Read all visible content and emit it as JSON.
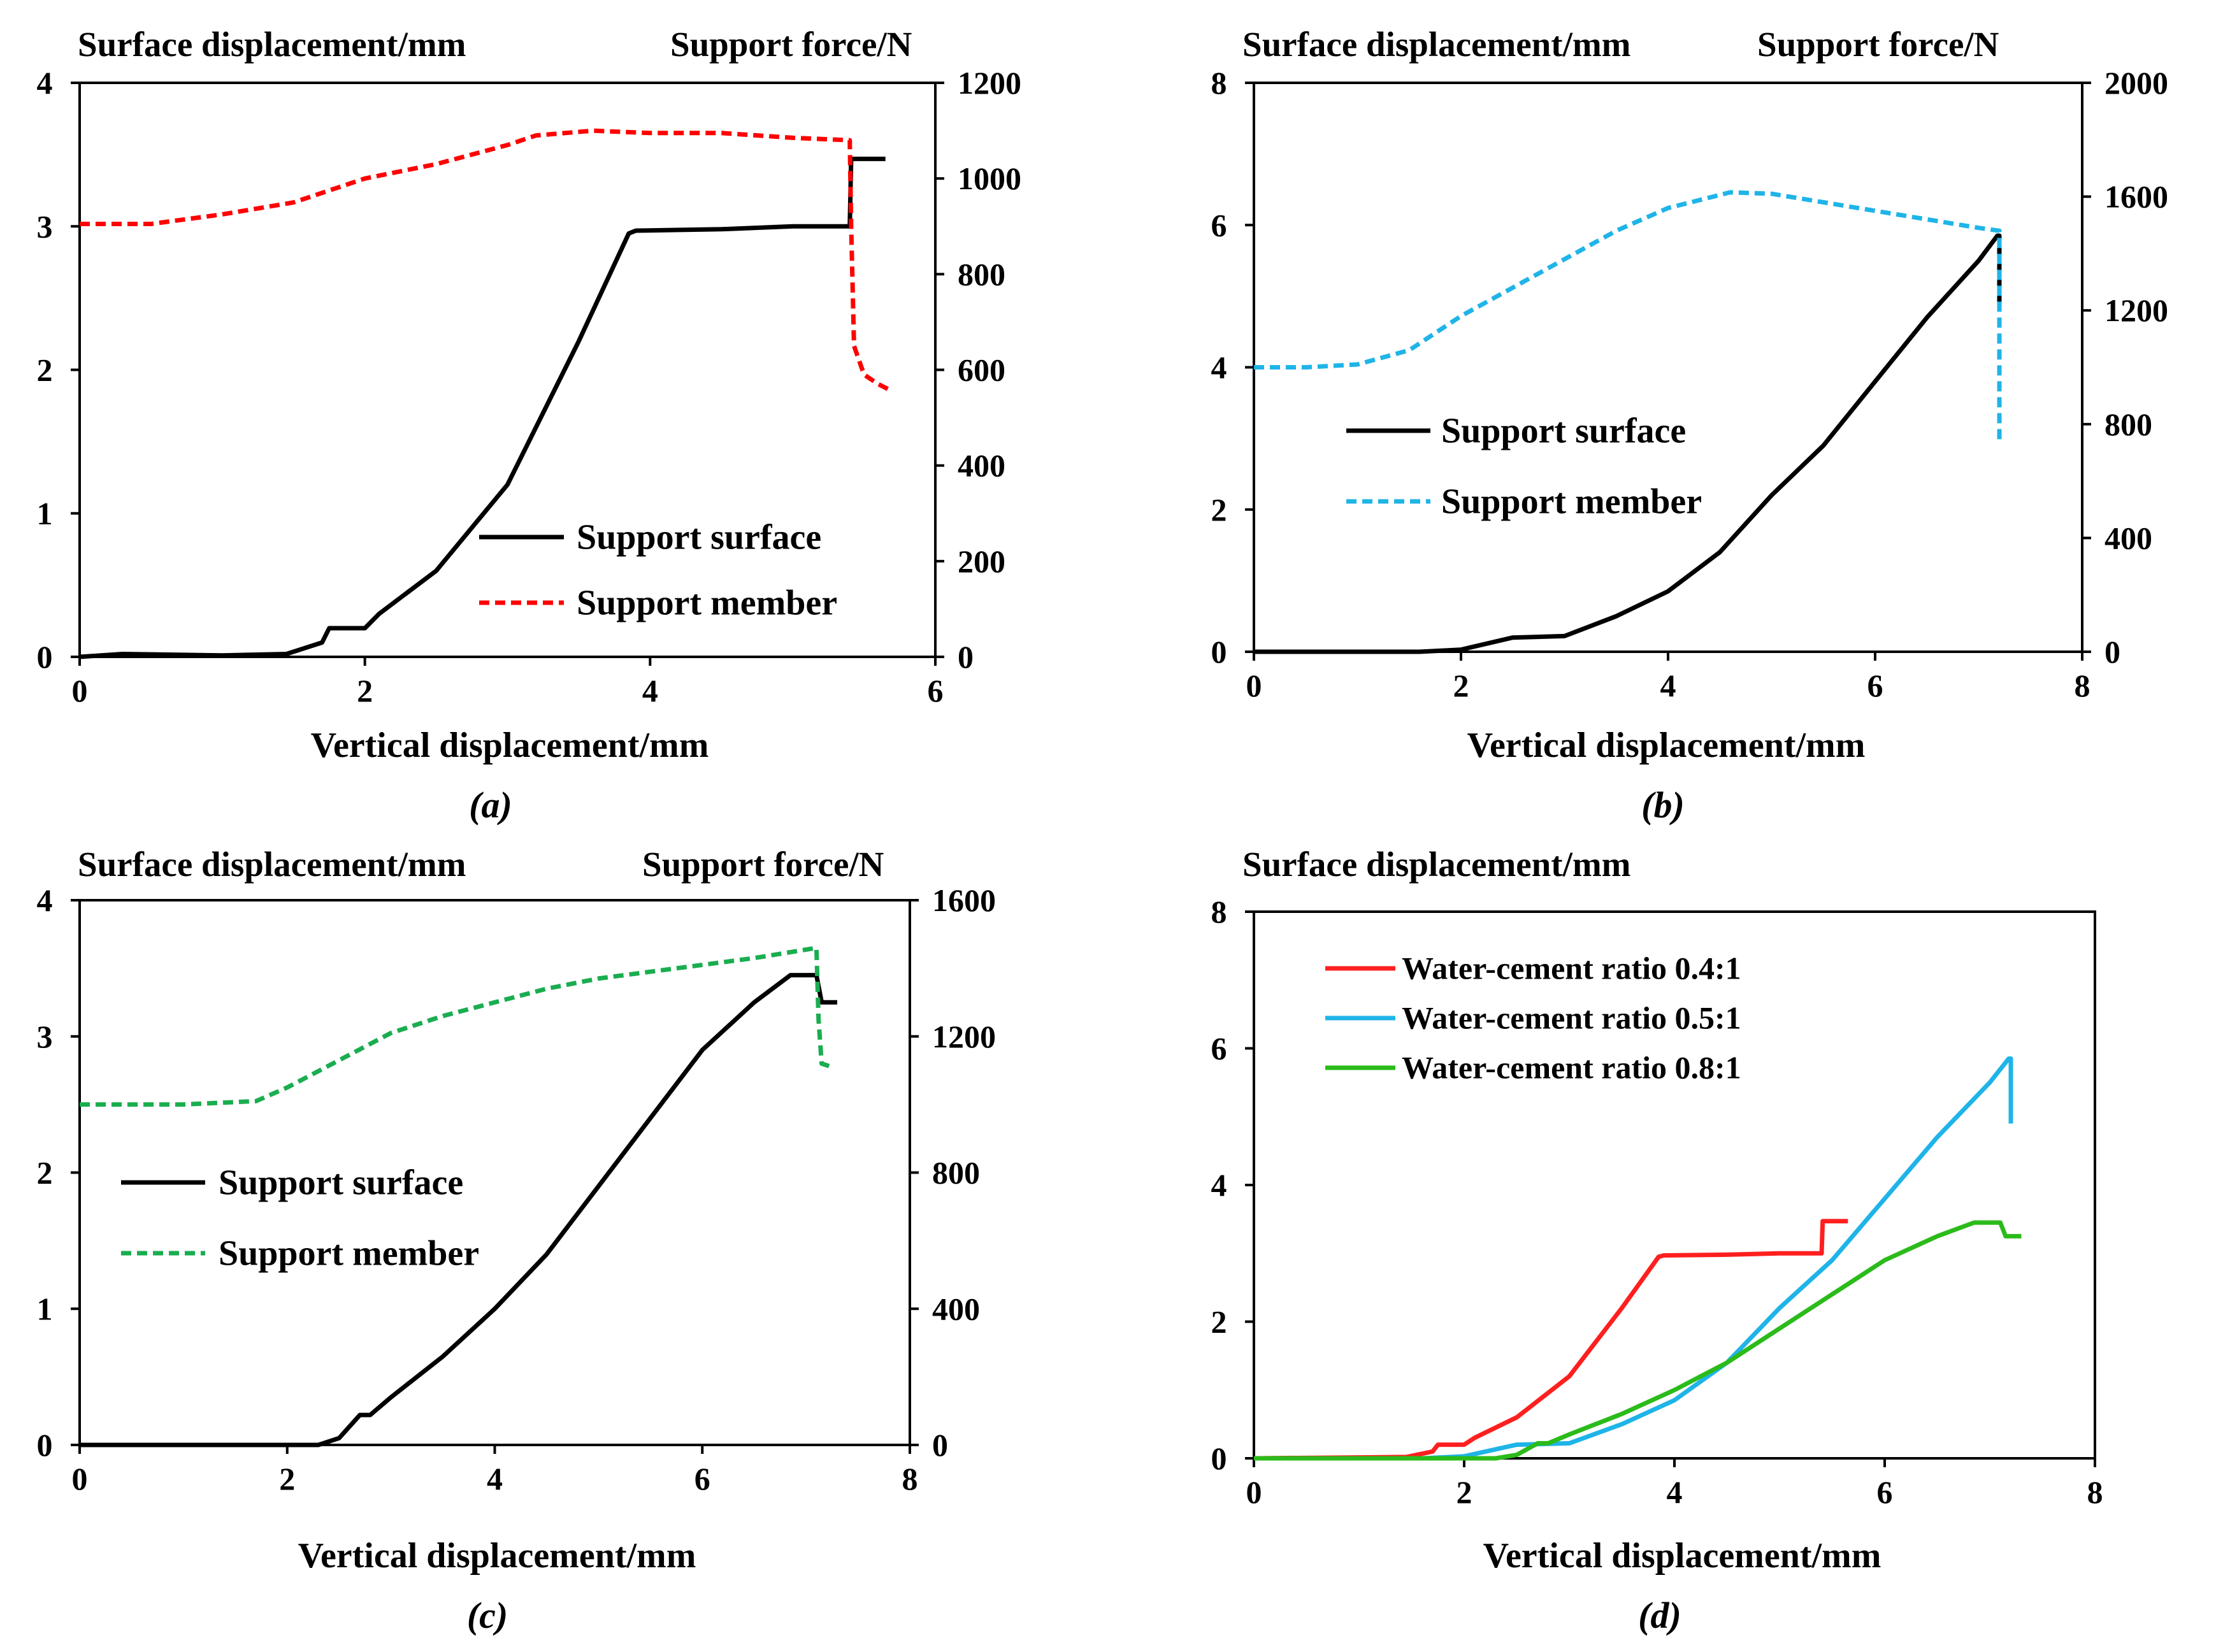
{
  "chart_data": [
    {
      "id": "a",
      "type": "line",
      "caption": "(a)",
      "xlabel": "Vertical displacement/mm",
      "ylabel_left": "Surface displacement/mm",
      "ylabel_right": "Support force/N",
      "xlim": [
        0,
        6
      ],
      "xticks": [
        0,
        2,
        4,
        6
      ],
      "ylim_left": [
        0,
        4
      ],
      "yticks_left": [
        0,
        1,
        2,
        3,
        4
      ],
      "ylim_right": [
        0,
        1200
      ],
      "yticks_right": [
        0,
        200,
        400,
        600,
        800,
        1000,
        1200
      ],
      "legend": {
        "position": "lower-right"
      },
      "series": [
        {
          "name": "Support surface",
          "axis": "left",
          "color": "#000000",
          "dash": "solid",
          "x": [
            0,
            0.3,
            1.0,
            1.45,
            1.7,
            1.75,
            2.0,
            2.1,
            2.5,
            3.0,
            3.5,
            3.85,
            3.9,
            4.5,
            5.0,
            5.4,
            5.41,
            5.65
          ],
          "y": [
            0,
            0.02,
            0.01,
            0.02,
            0.1,
            0.2,
            0.2,
            0.3,
            0.6,
            1.2,
            2.2,
            2.95,
            2.97,
            2.98,
            3.0,
            3.0,
            3.47,
            3.47
          ]
        },
        {
          "name": "Support member",
          "axis": "right",
          "color": "#ff0000",
          "dash": "dash",
          "x": [
            0,
            0.5,
            1.0,
            1.5,
            2.0,
            2.5,
            3.0,
            3.2,
            3.6,
            4.0,
            4.5,
            5.0,
            5.4,
            5.41,
            5.43,
            5.5,
            5.6,
            5.7
          ],
          "y": [
            905,
            905,
            925,
            950,
            1000,
            1030,
            1070,
            1090,
            1100,
            1095,
            1095,
            1085,
            1080,
            900,
            650,
            590,
            570,
            555
          ]
        }
      ]
    },
    {
      "id": "b",
      "type": "line",
      "caption": "(b)",
      "xlabel": "Vertical displacement/mm",
      "ylabel_left": "Surface displacement/mm",
      "ylabel_right": "Support force/N",
      "xlim": [
        0,
        8
      ],
      "xticks": [
        0,
        2,
        4,
        6,
        8
      ],
      "ylim_left": [
        0,
        8
      ],
      "yticks_left": [
        0,
        2,
        4,
        6,
        8
      ],
      "ylim_right": [
        0,
        2000
      ],
      "yticks_right": [
        0,
        400,
        800,
        1200,
        1600,
        2000
      ],
      "legend": {
        "position": "center-left"
      },
      "series": [
        {
          "name": "Support surface",
          "axis": "left",
          "color": "#000000",
          "dash": "solid",
          "x": [
            0,
            1.6,
            2.0,
            2.5,
            3.0,
            3.5,
            4.0,
            4.5,
            5.0,
            5.5,
            6.0,
            6.5,
            7.0,
            7.18,
            7.2,
            7.2
          ],
          "y": [
            0,
            0,
            0.03,
            0.2,
            0.22,
            0.5,
            0.85,
            1.4,
            2.2,
            2.9,
            3.8,
            4.7,
            5.5,
            5.85,
            5.85,
            4.9
          ]
        },
        {
          "name": "Support member",
          "axis": "right",
          "color": "#1fb4e8",
          "dash": "dash",
          "x": [
            0,
            0.5,
            1.0,
            1.5,
            2.0,
            2.5,
            3.0,
            3.5,
            4.0,
            4.6,
            5.0,
            5.5,
            6.0,
            6.5,
            7.0,
            7.2,
            7.2,
            7.2
          ],
          "y": [
            1000,
            1000,
            1010,
            1060,
            1180,
            1280,
            1380,
            1480,
            1560,
            1615,
            1610,
            1580,
            1550,
            1520,
            1490,
            1480,
            1200,
            730
          ]
        }
      ]
    },
    {
      "id": "c",
      "type": "line",
      "caption": "(c)",
      "xlabel": "Vertical displacement/mm",
      "ylabel_left": "Surface displacement/mm",
      "ylabel_right": "Support force/N",
      "xlim": [
        0,
        8
      ],
      "xticks": [
        0,
        2,
        4,
        6,
        8
      ],
      "ylim_left": [
        0,
        4
      ],
      "yticks_left": [
        0,
        1,
        2,
        3,
        4
      ],
      "ylim_right": [
        0,
        1600
      ],
      "yticks_right": [
        0,
        400,
        800,
        1200,
        1600
      ],
      "legend": {
        "position": "center-left"
      },
      "series": [
        {
          "name": "Support surface",
          "axis": "left",
          "color": "#000000",
          "dash": "solid",
          "x": [
            0,
            2.0,
            2.3,
            2.5,
            2.7,
            2.8,
            3.0,
            3.5,
            4.0,
            4.5,
            5.0,
            5.5,
            6.0,
            6.5,
            6.85,
            7.1,
            7.15,
            7.3
          ],
          "y": [
            0,
            0,
            0,
            0.05,
            0.22,
            0.22,
            0.35,
            0.65,
            1.0,
            1.4,
            1.9,
            2.4,
            2.9,
            3.25,
            3.45,
            3.45,
            3.25,
            3.25
          ]
        },
        {
          "name": "Support member",
          "axis": "right",
          "color": "#1aad50",
          "dash": "dash",
          "x": [
            0,
            1.0,
            1.7,
            2.0,
            2.5,
            3.0,
            3.5,
            4.0,
            4.5,
            5.0,
            5.5,
            6.0,
            6.5,
            7.0,
            7.1,
            7.12,
            7.15,
            7.25
          ],
          "y": [
            1000,
            1000,
            1010,
            1050,
            1130,
            1210,
            1260,
            1300,
            1340,
            1370,
            1390,
            1410,
            1430,
            1455,
            1460,
            1250,
            1120,
            1110
          ]
        }
      ]
    },
    {
      "id": "d",
      "type": "line",
      "caption": "(d)",
      "xlabel": "Vertical displacement/mm",
      "ylabel_left": "Surface displacement/mm",
      "xlim": [
        0,
        8
      ],
      "xticks": [
        0,
        2,
        4,
        6,
        8
      ],
      "ylim_left": [
        0,
        8
      ],
      "yticks_left": [
        0,
        2,
        4,
        6,
        8
      ],
      "legend": {
        "position": "top-left"
      },
      "series": [
        {
          "name": "Water-cement ratio 0.4:1",
          "axis": "left",
          "color": "#ff1f1f",
          "dash": "solid",
          "x": [
            0,
            1.45,
            1.7,
            1.75,
            2.0,
            2.1,
            2.5,
            3.0,
            3.5,
            3.85,
            3.9,
            4.5,
            5.0,
            5.4,
            5.41,
            5.65
          ],
          "y": [
            0,
            0.02,
            0.1,
            0.2,
            0.2,
            0.3,
            0.6,
            1.2,
            2.2,
            2.95,
            2.97,
            2.98,
            3.0,
            3.0,
            3.47,
            3.47
          ]
        },
        {
          "name": "Water-cement ratio 0.5:1",
          "axis": "left",
          "color": "#1fb4e8",
          "dash": "solid",
          "x": [
            0,
            1.6,
            2.0,
            2.5,
            3.0,
            3.5,
            4.0,
            4.5,
            5.0,
            5.5,
            6.0,
            6.5,
            7.0,
            7.18,
            7.2,
            7.2
          ],
          "y": [
            0,
            0,
            0.03,
            0.2,
            0.22,
            0.5,
            0.85,
            1.4,
            2.2,
            2.9,
            3.8,
            4.7,
            5.5,
            5.85,
            5.85,
            4.9
          ]
        },
        {
          "name": "Water-cement ratio 0.8:1",
          "axis": "left",
          "color": "#2bbb1a",
          "dash": "solid",
          "x": [
            0,
            2.0,
            2.3,
            2.5,
            2.7,
            2.8,
            3.0,
            3.5,
            4.0,
            4.5,
            5.0,
            5.5,
            6.0,
            6.5,
            6.85,
            7.1,
            7.15,
            7.3
          ],
          "y": [
            0,
            0,
            0,
            0.05,
            0.22,
            0.22,
            0.35,
            0.65,
            1.0,
            1.4,
            1.9,
            2.4,
            2.9,
            3.25,
            3.45,
            3.45,
            3.25,
            3.25
          ]
        }
      ]
    }
  ]
}
